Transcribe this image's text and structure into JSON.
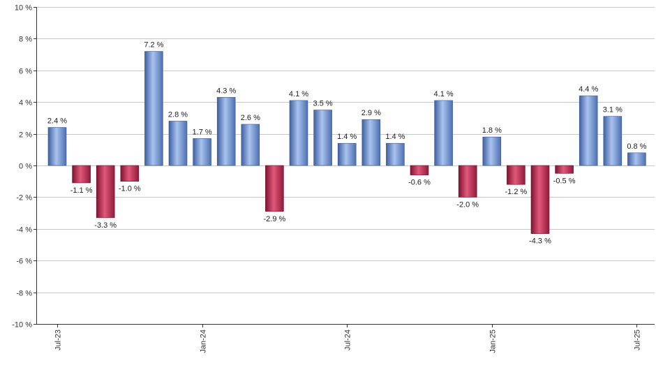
{
  "chart_data": {
    "type": "bar",
    "ylim": [
      -10,
      10
    ],
    "y_ticks": [
      {
        "value": 10,
        "label": "10 %"
      },
      {
        "value": 8,
        "label": "8 %"
      },
      {
        "value": 6,
        "label": "6 %"
      },
      {
        "value": 4,
        "label": "4 %"
      },
      {
        "value": 2,
        "label": "2 %"
      },
      {
        "value": 0,
        "label": "0 %"
      },
      {
        "value": -2,
        "label": "-2 %"
      },
      {
        "value": -4,
        "label": "-4 %"
      },
      {
        "value": -6,
        "label": "-6 %"
      },
      {
        "value": -8,
        "label": "-8 %"
      },
      {
        "value": -10,
        "label": "-10 %"
      }
    ],
    "x_ticks": [
      {
        "index": 0,
        "label": "Jul-23"
      },
      {
        "index": 6,
        "label": "Jan-24"
      },
      {
        "index": 12,
        "label": "Jul-24"
      },
      {
        "index": 18,
        "label": "Jan-25"
      },
      {
        "index": 24,
        "label": "Jul-25"
      }
    ],
    "categories": [
      "Jul-23",
      "Aug-23",
      "Sep-23",
      "Oct-23",
      "Nov-23",
      "Dec-23",
      "Jan-24",
      "Feb-24",
      "Mar-24",
      "Apr-24",
      "May-24",
      "Jun-24",
      "Jul-24",
      "Aug-24",
      "Sep-24",
      "Oct-24",
      "Nov-24",
      "Dec-24",
      "Jan-25",
      "Feb-25",
      "Mar-25",
      "Apr-25",
      "May-25",
      "Jun-25",
      "Jul-25"
    ],
    "values": [
      2.4,
      -1.1,
      -3.3,
      -1.0,
      7.2,
      2.8,
      1.7,
      4.3,
      2.6,
      -2.9,
      4.1,
      3.5,
      1.4,
      2.9,
      1.4,
      -0.6,
      4.1,
      -2.0,
      1.8,
      -1.2,
      -4.3,
      -0.5,
      4.4,
      3.1,
      0.8
    ],
    "value_labels": [
      "2.4 %",
      "-1.1 %",
      "-3.3 %",
      "-1.0 %",
      "7.2 %",
      "2.8 %",
      "1.7 %",
      "4.3 %",
      "2.6 %",
      "-2.9 %",
      "4.1 %",
      "3.5 %",
      "1.4 %",
      "2.9 %",
      "1.4 %",
      "-0.6 %",
      "4.1 %",
      "-2.0 %",
      "1.8 %",
      "-1.2 %",
      "-4.3 %",
      "-0.5 %",
      "4.4 %",
      "3.1 %",
      "0.8 %"
    ],
    "grid": true,
    "colors": {
      "positive": "#7c9fdc",
      "positive_dark": "#3a5a9a",
      "negative": "#cf3d5f",
      "negative_dark": "#7a1030",
      "grid": "#c8c8c8",
      "axis": "#333333"
    }
  }
}
